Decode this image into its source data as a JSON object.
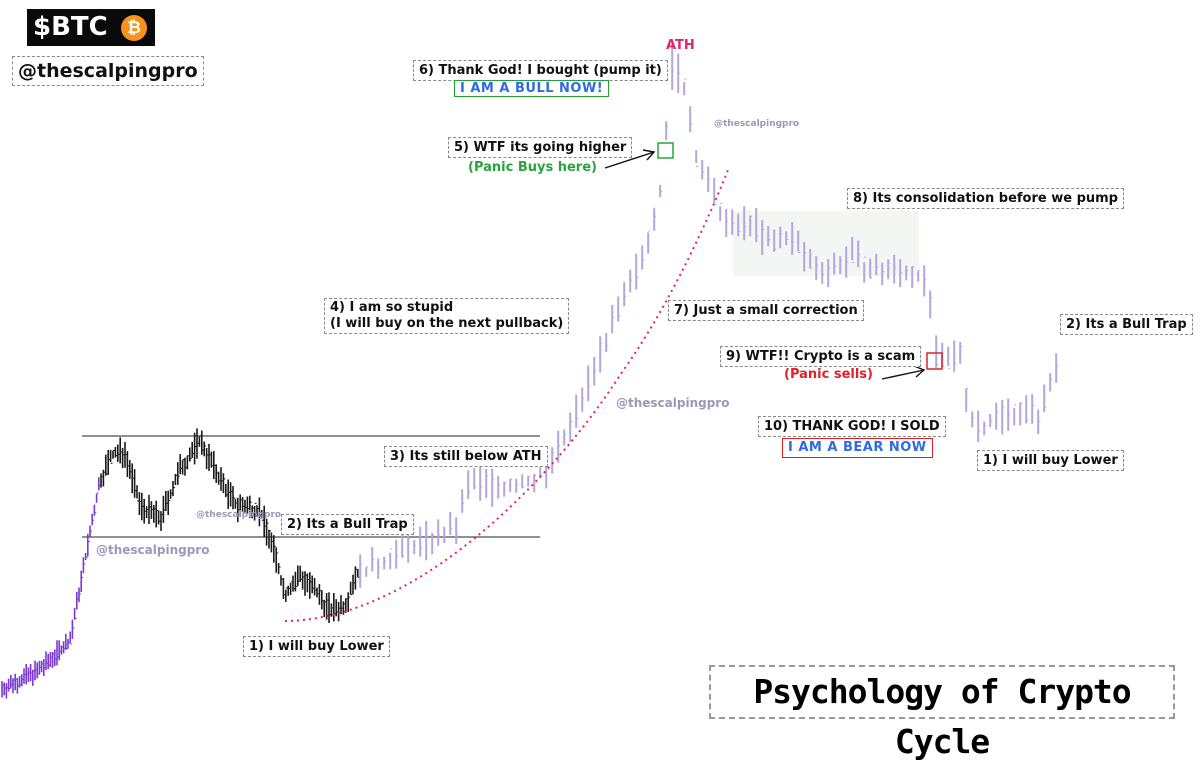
{
  "brand": {
    "ticker": "$BTC",
    "coin_symbol": "₿",
    "handle": "@thescalpingpro"
  },
  "title": "Psychology of Crypto Cycle",
  "ath_label": "ATH",
  "annotations": {
    "a1_left": "1) I will buy Lower",
    "a2_left": "2) Its a Bull Trap",
    "a3": "3) Its still below ATH",
    "a4_line1": "4)  I am so stupid",
    "a4_line2": "(I will buy on the next pullback)",
    "a5": "5) WTF its going higher",
    "a5_sub": "(Panic Buys here)",
    "a6": "6) Thank God! I bought (pump it)",
    "a6_badge": "I AM A BULL NOW!",
    "a7": "7) Just a small correction",
    "a8": "8) Its consolidation before we pump",
    "a9": "9)  WTF!! Crypto is a scam",
    "a9_sub": "(Panic sells)",
    "a10": "10) THANK GOD! I SOLD",
    "a10_badge": "I AM A BEAR NOW",
    "a1_right": "1) I will buy Lower",
    "a2_right": "2) Its a Bull Trap"
  },
  "watermarks": {
    "w1": "@thescalpingpro",
    "w2": "@thescalpingpro",
    "w3": "@thescalpingpro",
    "w4": "@thescalpingpro"
  },
  "colors": {
    "candle_dark": "#1a1a1a",
    "candle_purple": "#7a3ad6",
    "candle_lavender": "#b3a6dc",
    "curve_red": "#e0245e",
    "ath_pink": "#e0246e",
    "panic_buy_green": "#2aa33a",
    "panic_sell_red": "#e0202a",
    "bull_badge_text": "#2d6ce0",
    "consolidation_fill": "#f3f6f3"
  },
  "chart_data": {
    "type": "ohlc",
    "description_of_series": "Bitcoin market cycle: accumulation range, breakdown, parabolic run to ATH, correction, consolidation, capitulation",
    "axes_visible": false,
    "close_path": [
      [
        0,
        690
      ],
      [
        40,
        670
      ],
      [
        70,
        640
      ],
      [
        85,
        560
      ],
      [
        100,
        480
      ],
      [
        112,
        455
      ],
      [
        125,
        452
      ],
      [
        140,
        505
      ],
      [
        160,
        520
      ],
      [
        180,
        470
      ],
      [
        200,
        440
      ],
      [
        215,
        470
      ],
      [
        235,
        505
      ],
      [
        260,
        510
      ],
      [
        275,
        555
      ],
      [
        285,
        595
      ],
      [
        300,
        575
      ],
      [
        315,
        592
      ],
      [
        330,
        610
      ],
      [
        345,
        605
      ],
      [
        355,
        575
      ],
      [
        380,
        565
      ],
      [
        400,
        550
      ],
      [
        430,
        540
      ],
      [
        455,
        530
      ],
      [
        470,
        480
      ],
      [
        500,
        488
      ],
      [
        530,
        482
      ],
      [
        545,
        470
      ],
      [
        565,
        440
      ],
      [
        585,
        390
      ],
      [
        605,
        340
      ],
      [
        625,
        300
      ],
      [
        645,
        250
      ],
      [
        660,
        190
      ],
      [
        672,
        70
      ],
      [
        685,
        90
      ],
      [
        695,
        150
      ],
      [
        710,
        190
      ],
      [
        730,
        230
      ],
      [
        750,
        220
      ],
      [
        770,
        245
      ],
      [
        790,
        235
      ],
      [
        810,
        262
      ],
      [
        830,
        270
      ],
      [
        850,
        255
      ],
      [
        870,
        270
      ],
      [
        900,
        272
      ],
      [
        920,
        275
      ],
      [
        930,
        300
      ],
      [
        935,
        355
      ],
      [
        945,
        365
      ],
      [
        960,
        350
      ],
      [
        970,
        420
      ],
      [
        985,
        425
      ],
      [
        1000,
        415
      ],
      [
        1020,
        410
      ],
      [
        1040,
        415
      ],
      [
        1055,
        370
      ],
      [
        1060,
        345
      ]
    ],
    "horizontal_levels": [
      {
        "y_px_relative": "upper_range_top",
        "x_range": [
          82,
          540
        ]
      },
      {
        "y_px_relative": "range_bottom",
        "x_range": [
          82,
          540
        ]
      }
    ],
    "trend_curve": {
      "style": "dotted",
      "color": "#e0245e",
      "from": "bottom-left",
      "to": "ATH-right"
    }
  }
}
